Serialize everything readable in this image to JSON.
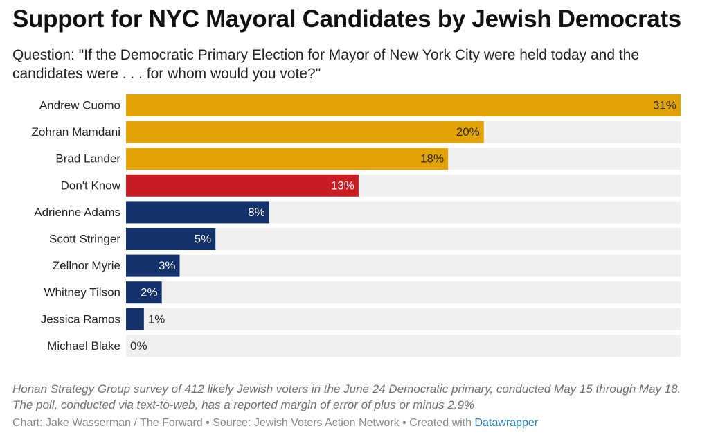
{
  "title": "Support for NYC Mayoral Candidates by Jewish Democrats",
  "subtitle": "Question: \"If the Democratic Primary Election for Mayor of New York City were held today and the candidates were . . . for whom would you vote?\"",
  "chart_data": {
    "type": "bar",
    "orientation": "horizontal",
    "categories": [
      "Andrew Cuomo",
      "Zohran Mamdani",
      "Brad Lander",
      "Don't Know",
      "Adrienne Adams",
      "Scott Stringer",
      "Zellnor Myrie",
      "Whitney Tilson",
      "Jessica Ramos",
      "Michael Blake"
    ],
    "values": [
      31,
      20,
      18,
      13,
      8,
      5,
      3,
      2,
      1,
      0
    ],
    "value_labels": [
      "31%",
      "20%",
      "18%",
      "13%",
      "8%",
      "5%",
      "3%",
      "2%",
      "1%",
      "0%"
    ],
    "colors": [
      "#e3a307",
      "#e3a307",
      "#e3a307",
      "#c91d24",
      "#13316b",
      "#13316b",
      "#13316b",
      "#13316b",
      "#13316b",
      "#13316b"
    ],
    "label_colors": [
      "#2b2b2b",
      "#2b2b2b",
      "#2b2b2b",
      "#ffffff",
      "#ffffff",
      "#ffffff",
      "#ffffff",
      "#ffffff",
      "#2b2b2b",
      "#2b2b2b"
    ],
    "track_color": "#f0f0f0",
    "xlim": [
      0,
      31
    ],
    "grid": false,
    "legend": "none"
  },
  "note": "Honan Strategy Group survey of 412 likely Jewish voters in the June 24 Democratic primary, conducted May 15 through May 18. The poll, conducted via text-to-web, has a reported margin of error of plus or minus 2.9%",
  "footer": {
    "credit": "Chart: Jake Wasserman / The Forward • Source: Jewish Voters Action Network • Created with ",
    "link": "Datawrapper"
  }
}
